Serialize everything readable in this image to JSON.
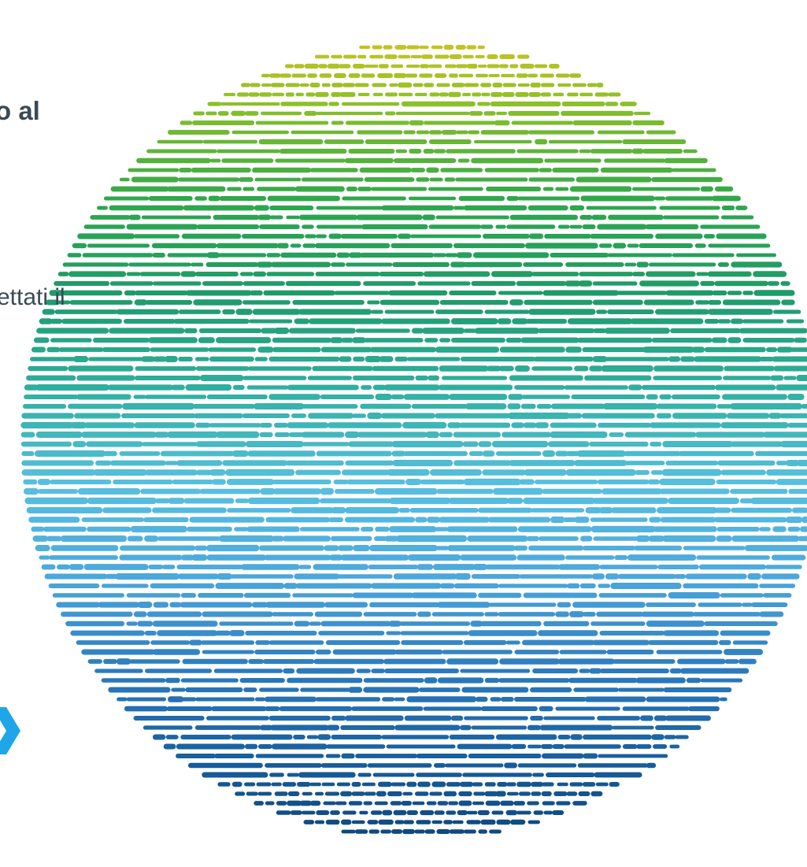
{
  "slide": {
    "heading_fragment": "o al",
    "body_fragment": "ettati il",
    "chevron_icon": "chevron-right-icon",
    "chevron_color": "#1fa6e8"
  },
  "globe": {
    "icon": "dashed-globe-graphic",
    "gradient_colors": [
      "#e8c61b",
      "#8cbf2a",
      "#2ea84a",
      "#1f9a6a",
      "#2fb0a0",
      "#58c0e0",
      "#4aa6dc",
      "#2a78bc",
      "#155a98",
      "#0b3f70"
    ]
  }
}
